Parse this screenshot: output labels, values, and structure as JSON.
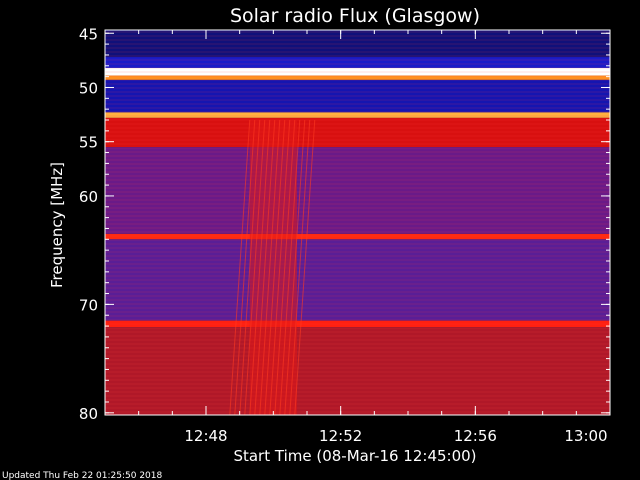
{
  "chart_data": {
    "type": "heatmap",
    "title": "Solar radio Flux (Glasgow)",
    "xlabel": "Start Time (08-Mar-16 12:45:00)",
    "ylabel": "Frequency [MHz]",
    "x_range_minutes": [
      0,
      15
    ],
    "x_ticks": [
      {
        "minute": 3,
        "label": "12:48"
      },
      {
        "minute": 7,
        "label": "12:52"
      },
      {
        "minute": 11,
        "label": "12:56"
      },
      {
        "minute": 15,
        "label": "13:00"
      }
    ],
    "y_range_mhz": [
      44.7,
      80.2
    ],
    "y_ticks": [
      {
        "mhz": 45,
        "label": "45"
      },
      {
        "mhz": 50,
        "label": "50"
      },
      {
        "mhz": 55,
        "label": "55"
      },
      {
        "mhz": 60,
        "label": "60"
      },
      {
        "mhz": 70,
        "label": "70"
      },
      {
        "mhz": 80,
        "label": "80"
      }
    ],
    "frequency_bands": [
      {
        "from_mhz": 44.7,
        "to_mhz": 47.2,
        "color": "#10107a"
      },
      {
        "from_mhz": 47.2,
        "to_mhz": 48.2,
        "color": "#1c1cc8"
      },
      {
        "from_mhz": 48.2,
        "to_mhz": 48.9,
        "color": "#ffffff"
      },
      {
        "from_mhz": 48.9,
        "to_mhz": 49.3,
        "color": "#ff9020"
      },
      {
        "from_mhz": 49.3,
        "to_mhz": 52.3,
        "color": "#1515b0"
      },
      {
        "from_mhz": 52.3,
        "to_mhz": 52.8,
        "color": "#ffb040"
      },
      {
        "from_mhz": 52.8,
        "to_mhz": 55.5,
        "color": "#d81010"
      },
      {
        "from_mhz": 55.5,
        "to_mhz": 63.5,
        "color": "#6a1a88"
      },
      {
        "from_mhz": 63.5,
        "to_mhz": 64.0,
        "color": "#ff2a10"
      },
      {
        "from_mhz": 64.0,
        "to_mhz": 71.5,
        "color": "#5a1e96"
      },
      {
        "from_mhz": 71.5,
        "to_mhz": 72.1,
        "color": "#ff2010"
      },
      {
        "from_mhz": 72.1,
        "to_mhz": 80.2,
        "color": "#b01828"
      }
    ],
    "features": [
      {
        "name": "burst",
        "from_minute": 4.3,
        "to_minute": 5.7,
        "from_mhz": 53.0,
        "to_mhz": 80.2
      }
    ]
  },
  "footer": {
    "updated": "Updated Thu Feb 22 01:25:50 2018"
  }
}
